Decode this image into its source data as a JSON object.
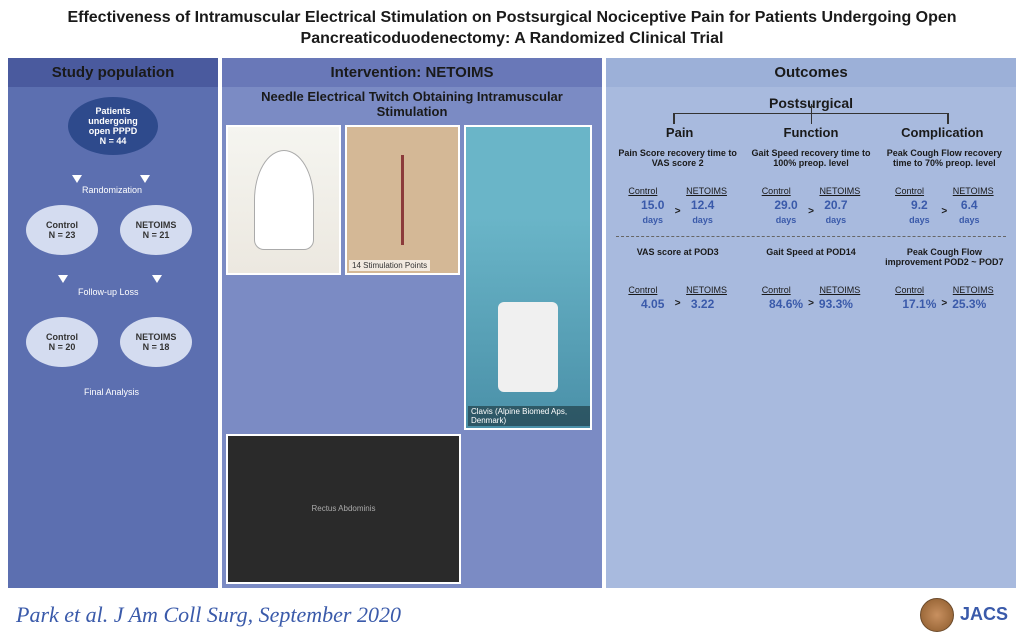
{
  "title": "Effectiveness of Intramuscular Electrical Stimulation on Postsurgical Nociceptive Pain for Patients Undergoing Open Pancreaticoduodenectomy: A Randomized Clinical Trial",
  "col1": {
    "header": "Study population",
    "top": {
      "l1": "Patients",
      "l2": "undergoing",
      "l3": "open PPPD",
      "n": "N = 44"
    },
    "rand": "Randomization",
    "m1": {
      "name": "Control",
      "n": "N = 23"
    },
    "m2": {
      "name": "NETOIMS",
      "n": "N = 21"
    },
    "fu": "Follow-up Loss",
    "b1": {
      "name": "Control",
      "n": "N = 20"
    },
    "b2": {
      "name": "NETOIMS",
      "n": "N = 18"
    },
    "final": "Final Analysis"
  },
  "col2": {
    "header": "Intervention: NETOIMS",
    "subtitle": "Needle  Electrical  Twitch  Obtaining Intramuscular  Stimulation",
    "points": "14 Stimulation Points",
    "rectus": "Rectus Abdominis",
    "device": "Clavis (Alpine Biomed Aps, Denmark)"
  },
  "col3": {
    "header": "Outcomes",
    "tree": "Postsurgical",
    "branches": [
      "Pain",
      "Function",
      "Complication"
    ],
    "groups": [
      "Control",
      "NETOIMS"
    ],
    "block1": [
      {
        "head": "Pain Score recovery time to VAS score 2",
        "c": "15.0",
        "cu": "days",
        "n": "12.4",
        "nu": "days"
      },
      {
        "head": "Gait Speed recovery time to 100% preop. level",
        "c": "29.0",
        "cu": "days",
        "n": "20.7",
        "nu": "days"
      },
      {
        "head": "Peak Cough Flow recovery time to 70% preop. level",
        "c": "9.2",
        "cu": "days",
        "n": "6.4",
        "nu": "days"
      }
    ],
    "block2": [
      {
        "head": "VAS score at POD3",
        "c": "4.05",
        "n": "3.22"
      },
      {
        "head": "Gait Speed at POD14",
        "c": "84.6%",
        "n": "93.3%"
      },
      {
        "head": "Peak Cough Flow improvement POD2 ~ POD7",
        "c": "17.1%",
        "n": "25.3%"
      }
    ]
  },
  "citation": "Park et al. J Am Coll Surg, September 2020",
  "journal": "JACS",
  "colors": {
    "col1_bg": "#5c6fb0",
    "col2_bg": "#7b8bc4",
    "col3_bg": "#a8bade",
    "accent": "#3a5aaa",
    "bubble": "#d4dcf0",
    "bubble_top": "#2e4a8c"
  }
}
